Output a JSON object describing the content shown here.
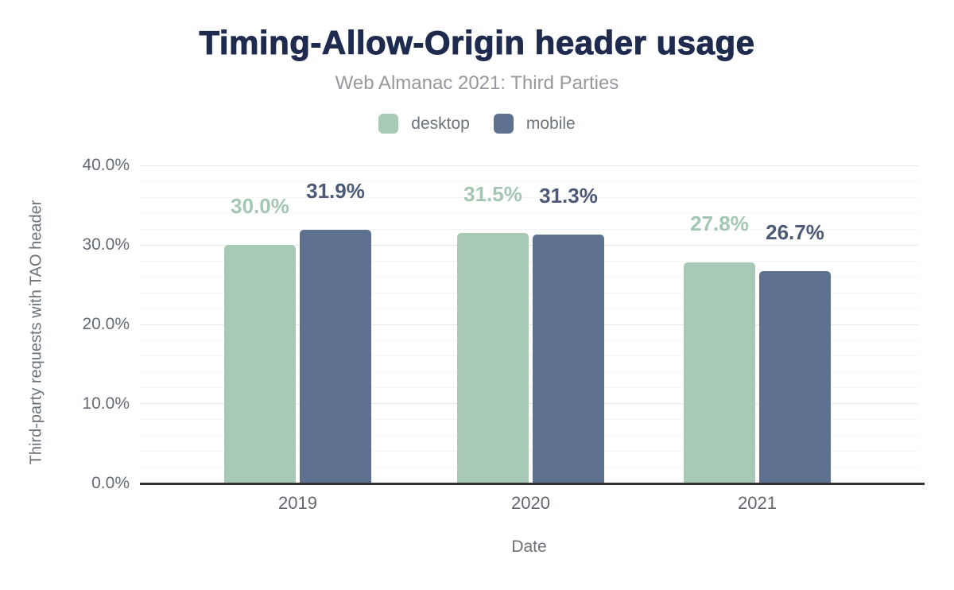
{
  "title": "Timing-Allow-Origin header usage",
  "subtitle": "Web Almanac 2021: Third Parties",
  "chart_data": {
    "type": "bar",
    "title": "Timing-Allow-Origin header usage",
    "subtitle": "Web Almanac 2021: Third Parties",
    "categories": [
      "2019",
      "2020",
      "2021"
    ],
    "series": [
      {
        "name": "desktop",
        "color": "#a8c9b6",
        "label_color": "#a4c7b3",
        "values": [
          30.0,
          31.5,
          27.8
        ],
        "labels": [
          "30.0%",
          "31.5%",
          "27.8%"
        ]
      },
      {
        "name": "mobile",
        "color": "#5f7190",
        "label_color": "#4c5a77",
        "values": [
          31.9,
          31.3,
          26.7
        ],
        "labels": [
          "31.9%",
          "31.3%",
          "26.7%"
        ]
      }
    ],
    "xlabel": "Date",
    "ylabel": "Third-party requests with TAO header",
    "ylim": [
      0,
      40
    ],
    "ytick_step": 10,
    "minor_tick_step": 2,
    "ytick_labels": [
      "0.0%",
      "10.0%",
      "20.0%",
      "30.0%",
      "40.0%"
    ],
    "grid": "major and minor horizontal gridlines",
    "legend_position": "top"
  }
}
